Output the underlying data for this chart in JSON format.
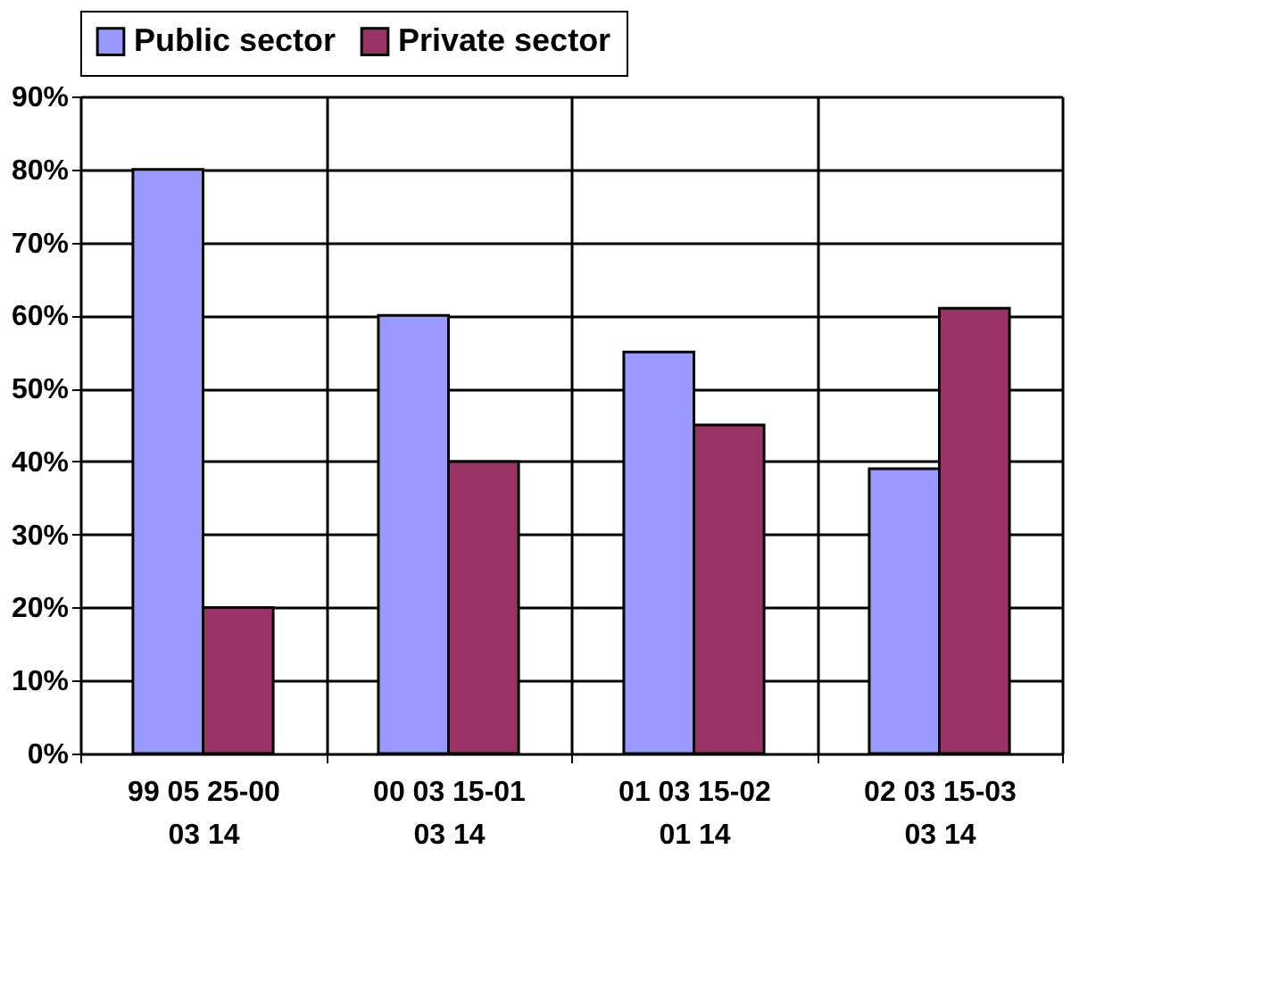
{
  "chart_data": {
    "type": "bar",
    "categories": [
      "99 05 25-00 03 14",
      "00 03 15-01 03 14",
      "01 03 15-02 01 14",
      "02 03 15-03 03 14"
    ],
    "series": [
      {
        "name": "Public sector",
        "color": "#9999ff",
        "values": [
          0.8,
          0.6,
          0.55,
          0.39
        ]
      },
      {
        "name": "Private sector",
        "color": "#993366",
        "values": [
          0.2,
          0.4,
          0.45,
          0.61
        ]
      }
    ],
    "ylim": [
      0,
      0.9
    ],
    "yticks": [
      {
        "value": 0,
        "label": "0%"
      },
      {
        "value": 0.1,
        "label": "10%"
      },
      {
        "value": 0.2,
        "label": "20%"
      },
      {
        "value": 0.3,
        "label": "30%"
      },
      {
        "value": 0.4,
        "label": "40%"
      },
      {
        "value": 0.5,
        "label": "50%"
      },
      {
        "value": 0.6,
        "label": "60%"
      },
      {
        "value": 0.7,
        "label": "70%"
      },
      {
        "value": 0.8,
        "label": "80%"
      },
      {
        "value": 0.9,
        "label": "90%"
      }
    ],
    "grid": true,
    "legend": "top"
  }
}
